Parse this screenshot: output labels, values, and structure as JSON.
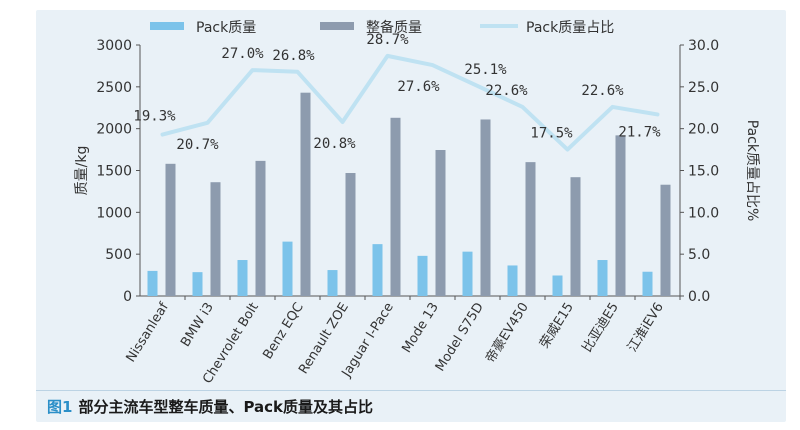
{
  "caption": {
    "figure_label": "图1",
    "text": "部分主流车型整车质量、Pack质量及其占比"
  },
  "colors": {
    "pack_bar": "#7cc3ea",
    "vehicle_bar": "#8d9bae",
    "ratio_line": "#bfe2f2",
    "axis_text": "#333333",
    "panel_bg": "#e9f1f7",
    "caption_accent": "#2b8fc8"
  },
  "chart_data": {
    "type": "bar",
    "categories": [
      "Nissanleaf",
      "BMW i3",
      "Chevrolet Bolt",
      "Benz EQC",
      "Renault ZOE",
      "Jaguar I-Pace",
      "Mode 13",
      "Model S75D",
      "帝豪EV450",
      "荣威E15",
      "比亚迪E5",
      "江淮iEV6"
    ],
    "series": [
      {
        "name": "Pack质量",
        "type": "bar",
        "axis": "left",
        "values": [
          300,
          285,
          430,
          650,
          310,
          620,
          480,
          530,
          365,
          245,
          430,
          290
        ]
      },
      {
        "name": "整备质量",
        "type": "bar",
        "axis": "left",
        "values": [
          1580,
          1360,
          1615,
          2430,
          1470,
          2130,
          1745,
          2110,
          1600,
          1420,
          1920,
          1330
        ]
      },
      {
        "name": "Pack质量占比",
        "type": "line",
        "axis": "right",
        "values": [
          19.3,
          20.7,
          27.0,
          26.8,
          20.8,
          28.7,
          27.6,
          25.1,
          22.6,
          17.5,
          22.6,
          21.7
        ]
      }
    ],
    "data_labels": [
      "19.3%",
      "20.7%",
      "27.0%",
      "26.8%",
      "20.8%",
      "28.7%",
      "27.6%",
      "25.1%",
      "22.6%",
      "17.5%",
      "22.6%",
      "21.7%"
    ],
    "ylabel": "质量/kg",
    "y2label": "Pack质量占比%",
    "ylim": [
      0,
      3000
    ],
    "y2lim": [
      0,
      30
    ],
    "yticks": [
      "0",
      "500",
      "1000",
      "1500",
      "2000",
      "2500",
      "3000"
    ],
    "y2ticks": [
      "0.0",
      "5.0",
      "10.0",
      "15.0",
      "20.0",
      "25.0",
      "30.0"
    ],
    "grid": false,
    "legend_position": "top"
  }
}
